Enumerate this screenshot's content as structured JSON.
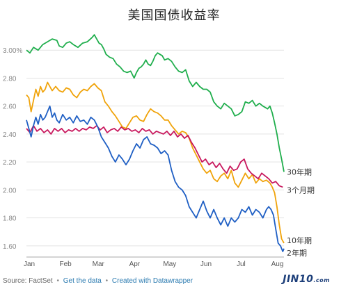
{
  "chart_data": {
    "type": "line",
    "title": "美国国债收益率",
    "xlabel": "",
    "ylabel": "",
    "ylim": [
      1.52,
      3.16
    ],
    "yticks": [
      1.6,
      1.8,
      2.0,
      2.2,
      2.4,
      2.6,
      2.8,
      3.0
    ],
    "ytick_labels": [
      "1.60",
      "1.80",
      "2.00",
      "2.20",
      "2.40",
      "2.60",
      "2.80",
      "3.00%"
    ],
    "xlim": [
      0,
      220
    ],
    "xticks": [
      0,
      31,
      59,
      90,
      120,
      151,
      181,
      212
    ],
    "xtick_labels": [
      "Jan",
      "Feb",
      "Mar",
      "Apr",
      "May",
      "Jun",
      "Jul",
      "Aug"
    ],
    "grid": true,
    "series": [
      {
        "name": "30年期",
        "color": "#1fae4c",
        "x": [
          0,
          3,
          6,
          10,
          14,
          18,
          22,
          26,
          28,
          31,
          34,
          37,
          40,
          44,
          48,
          52,
          56,
          58,
          60,
          62,
          64,
          66,
          68,
          71,
          74,
          77,
          80,
          83,
          86,
          89,
          92,
          94,
          96,
          98,
          100,
          102,
          104,
          106,
          108,
          110,
          112,
          114,
          116,
          118,
          121,
          124,
          127,
          130,
          133,
          136,
          139,
          142,
          145,
          148,
          151,
          154,
          157,
          160,
          163,
          166,
          169,
          172,
          175,
          178,
          181,
          184,
          187,
          190,
          193,
          196,
          199,
          202,
          204,
          206,
          208,
          210,
          212,
          214,
          216,
          218,
          220
        ],
        "values": [
          3.0,
          2.98,
          3.02,
          3.0,
          3.04,
          3.06,
          3.08,
          3.07,
          3.03,
          3.02,
          3.05,
          3.06,
          3.04,
          3.02,
          3.05,
          3.06,
          3.09,
          3.11,
          3.08,
          3.05,
          3.04,
          3.01,
          2.97,
          2.95,
          2.94,
          2.9,
          2.88,
          2.85,
          2.84,
          2.85,
          2.8,
          2.84,
          2.87,
          2.88,
          2.9,
          2.93,
          2.9,
          2.89,
          2.92,
          2.96,
          2.98,
          2.97,
          2.96,
          2.93,
          2.94,
          2.92,
          2.88,
          2.85,
          2.84,
          2.86,
          2.78,
          2.74,
          2.77,
          2.74,
          2.72,
          2.72,
          2.7,
          2.63,
          2.6,
          2.58,
          2.62,
          2.6,
          2.58,
          2.53,
          2.54,
          2.56,
          2.63,
          2.62,
          2.64,
          2.6,
          2.62,
          2.6,
          2.59,
          2.58,
          2.6,
          2.55,
          2.48,
          2.4,
          2.3,
          2.22,
          2.13
        ]
      },
      {
        "name": "10年期",
        "color": "#f0a30a",
        "x": [
          0,
          2,
          4,
          6,
          8,
          10,
          12,
          14,
          16,
          18,
          20,
          22,
          25,
          28,
          31,
          34,
          37,
          40,
          43,
          46,
          49,
          52,
          55,
          58,
          61,
          64,
          67,
          70,
          73,
          76,
          79,
          82,
          85,
          88,
          91,
          94,
          97,
          100,
          103,
          106,
          109,
          112,
          115,
          118,
          121,
          124,
          127,
          130,
          133,
          136,
          139,
          142,
          145,
          148,
          151,
          154,
          157,
          160,
          163,
          166,
          169,
          172,
          175,
          178,
          181,
          184,
          187,
          190,
          193,
          196,
          199,
          202,
          205,
          208,
          210,
          212,
          214,
          216,
          218,
          220
        ],
        "values": [
          2.68,
          2.66,
          2.56,
          2.64,
          2.72,
          2.67,
          2.74,
          2.7,
          2.72,
          2.77,
          2.74,
          2.71,
          2.74,
          2.71,
          2.7,
          2.73,
          2.72,
          2.68,
          2.66,
          2.7,
          2.72,
          2.71,
          2.74,
          2.76,
          2.73,
          2.71,
          2.63,
          2.6,
          2.56,
          2.53,
          2.49,
          2.45,
          2.44,
          2.48,
          2.52,
          2.53,
          2.5,
          2.49,
          2.54,
          2.58,
          2.56,
          2.55,
          2.53,
          2.5,
          2.5,
          2.46,
          2.43,
          2.4,
          2.42,
          2.41,
          2.37,
          2.3,
          2.25,
          2.2,
          2.15,
          2.12,
          2.14,
          2.08,
          2.06,
          2.1,
          2.12,
          2.08,
          2.14,
          2.05,
          2.02,
          2.07,
          2.12,
          2.08,
          2.11,
          2.05,
          2.08,
          2.06,
          2.07,
          2.05,
          2.02,
          1.98,
          1.88,
          1.75,
          1.65,
          1.62
        ]
      },
      {
        "name": "3个月期",
        "color": "#c8175d",
        "x": [
          0,
          3,
          6,
          9,
          12,
          15,
          18,
          21,
          24,
          27,
          30,
          33,
          36,
          39,
          42,
          45,
          48,
          51,
          54,
          57,
          60,
          63,
          66,
          69,
          72,
          75,
          78,
          81,
          84,
          87,
          90,
          93,
          96,
          99,
          102,
          105,
          108,
          111,
          114,
          117,
          120,
          123,
          126,
          129,
          132,
          135,
          138,
          141,
          144,
          147,
          150,
          153,
          156,
          159,
          162,
          165,
          168,
          171,
          174,
          177,
          180,
          183,
          186,
          189,
          192,
          195,
          198,
          201,
          204,
          207,
          210,
          213,
          216,
          219
        ],
        "values": [
          2.44,
          2.41,
          2.46,
          2.42,
          2.44,
          2.41,
          2.43,
          2.4,
          2.44,
          2.42,
          2.44,
          2.41,
          2.43,
          2.42,
          2.44,
          2.42,
          2.44,
          2.43,
          2.45,
          2.44,
          2.46,
          2.43,
          2.45,
          2.41,
          2.43,
          2.44,
          2.42,
          2.45,
          2.43,
          2.44,
          2.42,
          2.43,
          2.41,
          2.44,
          2.42,
          2.43,
          2.4,
          2.42,
          2.41,
          2.4,
          2.42,
          2.39,
          2.42,
          2.38,
          2.4,
          2.37,
          2.39,
          2.34,
          2.3,
          2.25,
          2.2,
          2.22,
          2.18,
          2.2,
          2.16,
          2.19,
          2.15,
          2.12,
          2.17,
          2.14,
          2.15,
          2.2,
          2.22,
          2.15,
          2.12,
          2.1,
          2.08,
          2.12,
          2.1,
          2.08,
          2.05,
          2.06,
          2.03,
          2.02
        ]
      },
      {
        "name": "2年期",
        "color": "#1f5fc4",
        "x": [
          0,
          2,
          4,
          6,
          8,
          10,
          12,
          14,
          16,
          18,
          20,
          22,
          24,
          26,
          28,
          31,
          34,
          37,
          40,
          43,
          46,
          49,
          52,
          55,
          58,
          61,
          64,
          67,
          70,
          73,
          76,
          79,
          82,
          85,
          88,
          91,
          94,
          97,
          100,
          103,
          106,
          109,
          112,
          115,
          118,
          121,
          124,
          127,
          130,
          133,
          136,
          139,
          142,
          145,
          148,
          151,
          154,
          157,
          160,
          163,
          166,
          169,
          172,
          175,
          178,
          181,
          184,
          187,
          190,
          193,
          196,
          199,
          202,
          205,
          207,
          209,
          211,
          213,
          215,
          217,
          219,
          220
        ],
        "values": [
          2.5,
          2.44,
          2.38,
          2.46,
          2.52,
          2.47,
          2.54,
          2.5,
          2.52,
          2.56,
          2.6,
          2.52,
          2.55,
          2.5,
          2.48,
          2.54,
          2.5,
          2.52,
          2.48,
          2.53,
          2.49,
          2.5,
          2.47,
          2.52,
          2.5,
          2.45,
          2.38,
          2.34,
          2.3,
          2.24,
          2.2,
          2.25,
          2.22,
          2.18,
          2.22,
          2.28,
          2.33,
          2.3,
          2.36,
          2.38,
          2.33,
          2.32,
          2.3,
          2.26,
          2.28,
          2.25,
          2.14,
          2.06,
          2.02,
          2.0,
          1.96,
          1.88,
          1.84,
          1.8,
          1.86,
          1.92,
          1.85,
          1.8,
          1.86,
          1.8,
          1.75,
          1.8,
          1.74,
          1.8,
          1.77,
          1.8,
          1.86,
          1.84,
          1.88,
          1.82,
          1.86,
          1.84,
          1.8,
          1.86,
          1.88,
          1.86,
          1.82,
          1.72,
          1.62,
          1.6,
          1.56,
          1.58
        ]
      }
    ],
    "series_labels": [
      {
        "series": "30年期",
        "text": "30年期",
        "y": 2.13
      },
      {
        "series": "3个月期",
        "text": "3个月期",
        "y": 2.0
      },
      {
        "series": "10年期",
        "text": "10年期",
        "y": 1.64
      },
      {
        "series": "2年期",
        "text": "2年期",
        "y": 1.55
      }
    ]
  },
  "footer": {
    "source": "Source: FactSet",
    "sep1": "•",
    "get_data": "Get the data",
    "sep2": "•",
    "created_with": "Created with Datawrapper"
  },
  "watermark": {
    "text": "JIN10",
    "suffix": ".com"
  }
}
